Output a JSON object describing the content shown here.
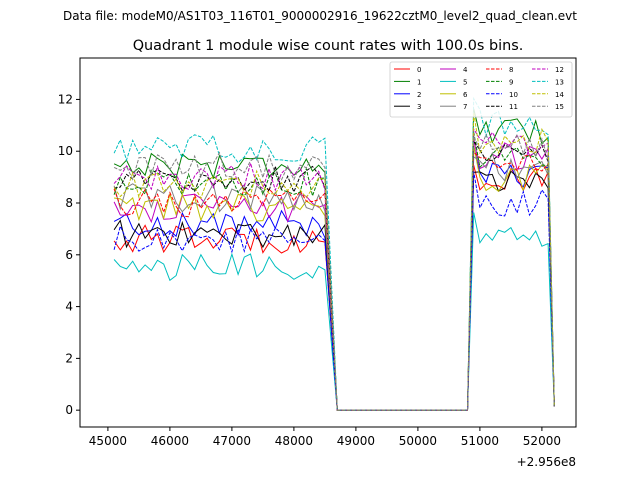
{
  "chart_data": {
    "type": "line",
    "suptitle": "Data file: modeM0/AS1T03_116T01_9000002916_19622cztM0_level2_quad_clean.evt",
    "title": "Quadrant 1 module wise count rates with 100.0s bins.",
    "xlabel": "",
    "ylabel": "",
    "x_offset_label": "+2.956e8",
    "xlim": [
      44550,
      52550
    ],
    "ylim": [
      -0.65,
      13.6
    ],
    "xticks": [
      45000,
      46000,
      47000,
      48000,
      49000,
      50000,
      51000,
      52000
    ],
    "xtick_labels": [
      "45000",
      "46000",
      "47000",
      "48000",
      "49000",
      "50000",
      "51000",
      "52000"
    ],
    "yticks": [
      0,
      2,
      4,
      6,
      8,
      10,
      12
    ],
    "ytick_labels": [
      "0",
      "2",
      "4",
      "6",
      "8",
      "10",
      "12"
    ],
    "legend_position": "top-right",
    "legend_columns": 4,
    "gap": {
      "start_x": 48700,
      "end_x": 50800,
      "value": 0.0
    },
    "seg1": {
      "x_start": 45100,
      "x_end": 48500,
      "step": 100
    },
    "seg2": {
      "x_start": 50900,
      "x_end": 52100,
      "step": 100
    },
    "final_point": {
      "x": 52200,
      "value": 0.15
    },
    "series": [
      {
        "name": "0",
        "color": "#ff0000",
        "dash": "solid",
        "level1": 6.6,
        "level2": 8.8
      },
      {
        "name": "1",
        "color": "#008000",
        "dash": "solid",
        "level1": 9.5,
        "level2": 10.7
      },
      {
        "name": "2",
        "color": "#0000ff",
        "dash": "solid",
        "level1": 7.2,
        "level2": 9.0
      },
      {
        "name": "3",
        "color": "#000000",
        "dash": "solid",
        "level1": 6.8,
        "level2": 8.8
      },
      {
        "name": "4",
        "color": "#bf00bf",
        "dash": "solid",
        "level1": 7.8,
        "level2": 9.8
      },
      {
        "name": "5",
        "color": "#00bfbf",
        "dash": "solid",
        "level1": 5.5,
        "level2": 6.7
      },
      {
        "name": "6",
        "color": "#bfbf00",
        "dash": "solid",
        "level1": 7.8,
        "level2": 9.0
      },
      {
        "name": "7",
        "color": "#808080",
        "dash": "solid",
        "level1": 8.2,
        "level2": 9.4
      },
      {
        "name": "8",
        "color": "#ff0000",
        "dash": "dashed",
        "level1": 8.0,
        "level2": 9.3
      },
      {
        "name": "9",
        "color": "#008000",
        "dash": "dashed",
        "level1": 8.8,
        "level2": 9.8
      },
      {
        "name": "10",
        "color": "#0000ff",
        "dash": "dashed",
        "level1": 6.6,
        "level2": 8.0
      },
      {
        "name": "11",
        "color": "#000000",
        "dash": "dashed",
        "level1": 8.9,
        "level2": 10.0
      },
      {
        "name": "12",
        "color": "#bf00bf",
        "dash": "dashed",
        "level1": 9.0,
        "level2": 10.2
      },
      {
        "name": "13",
        "color": "#00bfbf",
        "dash": "dashed",
        "level1": 10.1,
        "level2": 11.1
      },
      {
        "name": "14",
        "color": "#bfbf00",
        "dash": "dashed",
        "level1": 8.7,
        "level2": 10.3
      },
      {
        "name": "15",
        "color": "#808080",
        "dash": "dashed",
        "level1": 9.4,
        "level2": 10.2
      }
    ]
  }
}
